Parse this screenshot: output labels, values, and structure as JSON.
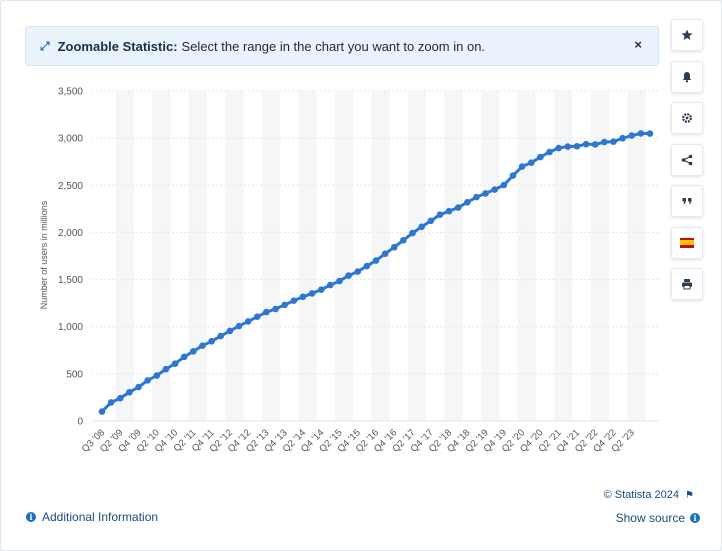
{
  "banner": {
    "title": "Zoomable Statistic:",
    "text": "Select the range in the chart you want to zoom in on.",
    "close_label": "×"
  },
  "sidebar": {
    "buttons": [
      {
        "name": "favorite-button",
        "icon": "star-icon"
      },
      {
        "name": "notification-button",
        "icon": "bell-icon"
      },
      {
        "name": "settings-button",
        "icon": "gear-icon"
      },
      {
        "name": "share-button",
        "icon": "share-icon"
      },
      {
        "name": "cite-button",
        "icon": "quote-icon"
      },
      {
        "name": "language-button",
        "icon": "spain-flag-icon"
      },
      {
        "name": "print-button",
        "icon": "print-icon"
      }
    ]
  },
  "footer": {
    "credit": "© Statista 2024",
    "additional_info": "Additional Information",
    "show_source": "Show source"
  },
  "colors": {
    "line": "#2e77d0",
    "band": "#f5f6f8",
    "grid": "#e3e6ea",
    "axis_text": "#555555",
    "accent": "#1a6fbf"
  },
  "chart_data": {
    "type": "line",
    "title": "",
    "xlabel": "",
    "ylabel": "Number of users in millions",
    "ylim": [
      0,
      3500
    ],
    "yticks": [
      0,
      500,
      1000,
      1500,
      2000,
      2500,
      3000,
      3500
    ],
    "ytick_labels": [
      "0",
      "500",
      "1,000",
      "1,500",
      "2,000",
      "2,500",
      "3,000",
      "3,500"
    ],
    "grid": true,
    "x": [
      "Q3 '08",
      "Q4 '08",
      "Q1 '09",
      "Q2 '09",
      "Q3 '09",
      "Q4 '09",
      "Q1 '10",
      "Q2 '10",
      "Q3 '10",
      "Q4 '10",
      "Q1 '11",
      "Q2 '11",
      "Q3 '11",
      "Q4 '11",
      "Q1 '12",
      "Q2 '12",
      "Q3 '12",
      "Q4 '12",
      "Q1 '13",
      "Q2 '13",
      "Q3 '13",
      "Q4 '13",
      "Q1 '14",
      "Q2 '14",
      "Q3 '14",
      "Q4 '14",
      "Q1 '15",
      "Q2 '15",
      "Q3 '15",
      "Q4 '15",
      "Q1 '16",
      "Q2 '16",
      "Q3 '16",
      "Q4 '16",
      "Q1 '17",
      "Q2 '17",
      "Q3 '17",
      "Q4 '17",
      "Q1 '18",
      "Q2 '18",
      "Q3 '18",
      "Q4 '18",
      "Q1 '19",
      "Q2 '19",
      "Q3 '19",
      "Q4 '19",
      "Q1 '20",
      "Q2 '20",
      "Q3 '20",
      "Q4 '20",
      "Q1 '21",
      "Q2 '21",
      "Q3 '21",
      "Q4 '21",
      "Q1 '22",
      "Q2 '22",
      "Q3 '22",
      "Q4 '22",
      "Q1 '23",
      "Q2 '23",
      "Q3 '23"
    ],
    "tick_labels": [
      "Q3 '08",
      "Q2 '09",
      "Q4 '09",
      "Q2 '10",
      "Q4 '10",
      "Q2 '11",
      "Q4 '11",
      "Q2 '12",
      "Q4 '12",
      "Q2 '13",
      "Q4 '13",
      "Q2 '14",
      "Q4 '14",
      "Q2 '15",
      "Q4 '15",
      "Q2 '16",
      "Q4 '16",
      "Q2 '17",
      "Q4 '17",
      "Q2 '18",
      "Q4 '18",
      "Q2 '19",
      "Q4 '19",
      "Q2 '20",
      "Q4 '20",
      "Q2 '21",
      "Q4 '21",
      "Q2 '22",
      "Q4 '22",
      "Q2 '23"
    ],
    "series": [
      {
        "name": "",
        "values": [
          100,
          197,
          242,
          305,
          360,
          431,
          482,
          550,
          608,
          680,
          739,
          799,
          845,
          901,
          955,
          1007,
          1056,
          1106,
          1155,
          1188,
          1231,
          1276,
          1317,
          1353,
          1393,
          1442,
          1484,
          1542,
          1585,
          1643,
          1702,
          1774,
          1843,
          1917,
          1993,
          2060,
          2123,
          2188,
          2226,
          2264,
          2319,
          2375,
          2414,
          2455,
          2502,
          2603,
          2699,
          2740,
          2799,
          2853,
          2895,
          2911,
          2914,
          2936,
          2933,
          2958,
          2963,
          2999,
          3027,
          3050,
          3049
        ]
      }
    ]
  }
}
